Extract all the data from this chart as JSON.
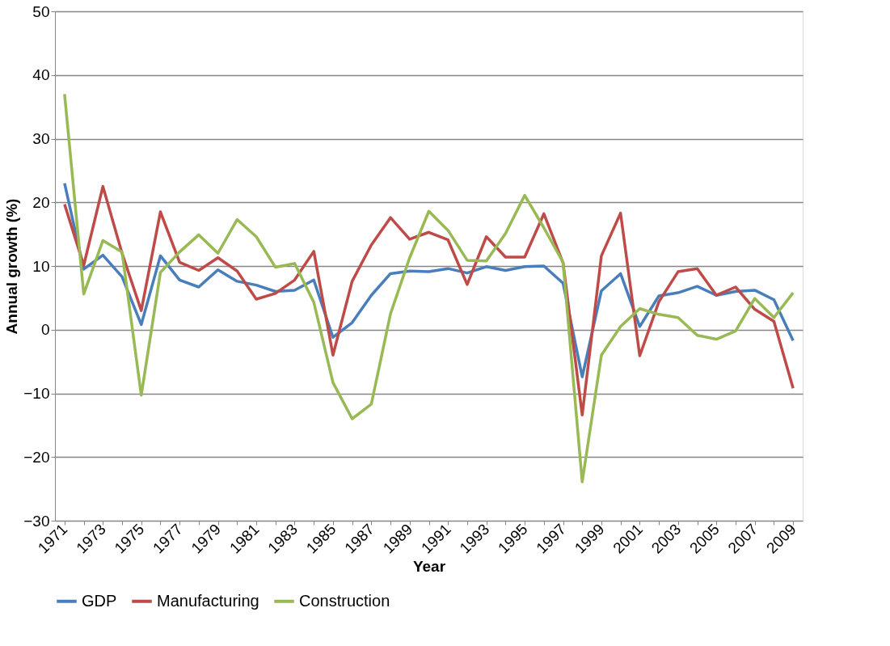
{
  "chart_data": {
    "type": "line",
    "xlabel": "Year",
    "ylabel": "Annual growth (%)",
    "categories": [
      "1971",
      null,
      "1973",
      null,
      "1975",
      null,
      "1977",
      null,
      "1979",
      null,
      "1981",
      null,
      "1983",
      null,
      "1985",
      null,
      "1987",
      null,
      "1989",
      null,
      "1991",
      null,
      "1993",
      null,
      "1995",
      null,
      "1997",
      null,
      "1999",
      null,
      "2001",
      null,
      "2003",
      null,
      "2005",
      null,
      "2007",
      null,
      "2009"
    ],
    "ylim": [
      -30,
      50
    ],
    "yticks": [
      -30,
      -20,
      -10,
      0,
      10,
      20,
      30,
      40,
      50
    ],
    "grid": "y",
    "legend": "bottom",
    "marker": "none",
    "line_style": "solid",
    "series": [
      {
        "name": "GDP",
        "color": "#4a7ebb",
        "values": [
          23,
          9.5,
          11.7,
          8.3,
          0.8,
          11.6,
          7.8,
          6.7,
          9.4,
          7.6,
          7.0,
          6.0,
          6.2,
          7.8,
          -1.2,
          1.1,
          5.4,
          8.8,
          9.2,
          9.1,
          9.6,
          8.9,
          9.9,
          9.3,
          9.9,
          10.0,
          7.3,
          -7.4,
          6.1,
          8.8,
          0.5,
          5.3,
          5.8,
          6.8,
          5.4,
          6.0,
          6.2,
          4.7,
          -1.7
        ]
      },
      {
        "name": "Manufacturing",
        "color": "#be4b48",
        "values": [
          19.7,
          10.1,
          22.5,
          12.0,
          3.0,
          18.5,
          10.6,
          9.3,
          11.3,
          9.2,
          4.8,
          5.7,
          7.8,
          12.3,
          -4.0,
          7.6,
          13.3,
          17.6,
          14.2,
          15.3,
          14.1,
          7.1,
          14.6,
          11.4,
          11.4,
          18.2,
          10.5,
          -13.4,
          11.6,
          18.3,
          -4.1,
          4.4,
          9.1,
          9.6,
          5.4,
          6.7,
          3.2,
          1.3,
          -9.2
        ]
      },
      {
        "name": "Construction",
        "color": "#98b954",
        "values": [
          37.0,
          5.6,
          14.0,
          12.2,
          -10.3,
          9.0,
          12.2,
          14.9,
          12.0,
          17.3,
          14.6,
          9.8,
          10.4,
          4.3,
          -8.3,
          -14.0,
          -11.7,
          2.5,
          11.3,
          18.6,
          15.6,
          10.9,
          10.8,
          15.1,
          21.1,
          16.0,
          10.6,
          -23.9,
          -4.0,
          0.5,
          3.3,
          2.4,
          1.9,
          -0.9,
          -1.5,
          -0.2,
          4.9,
          1.9,
          5.8
        ]
      }
    ]
  }
}
